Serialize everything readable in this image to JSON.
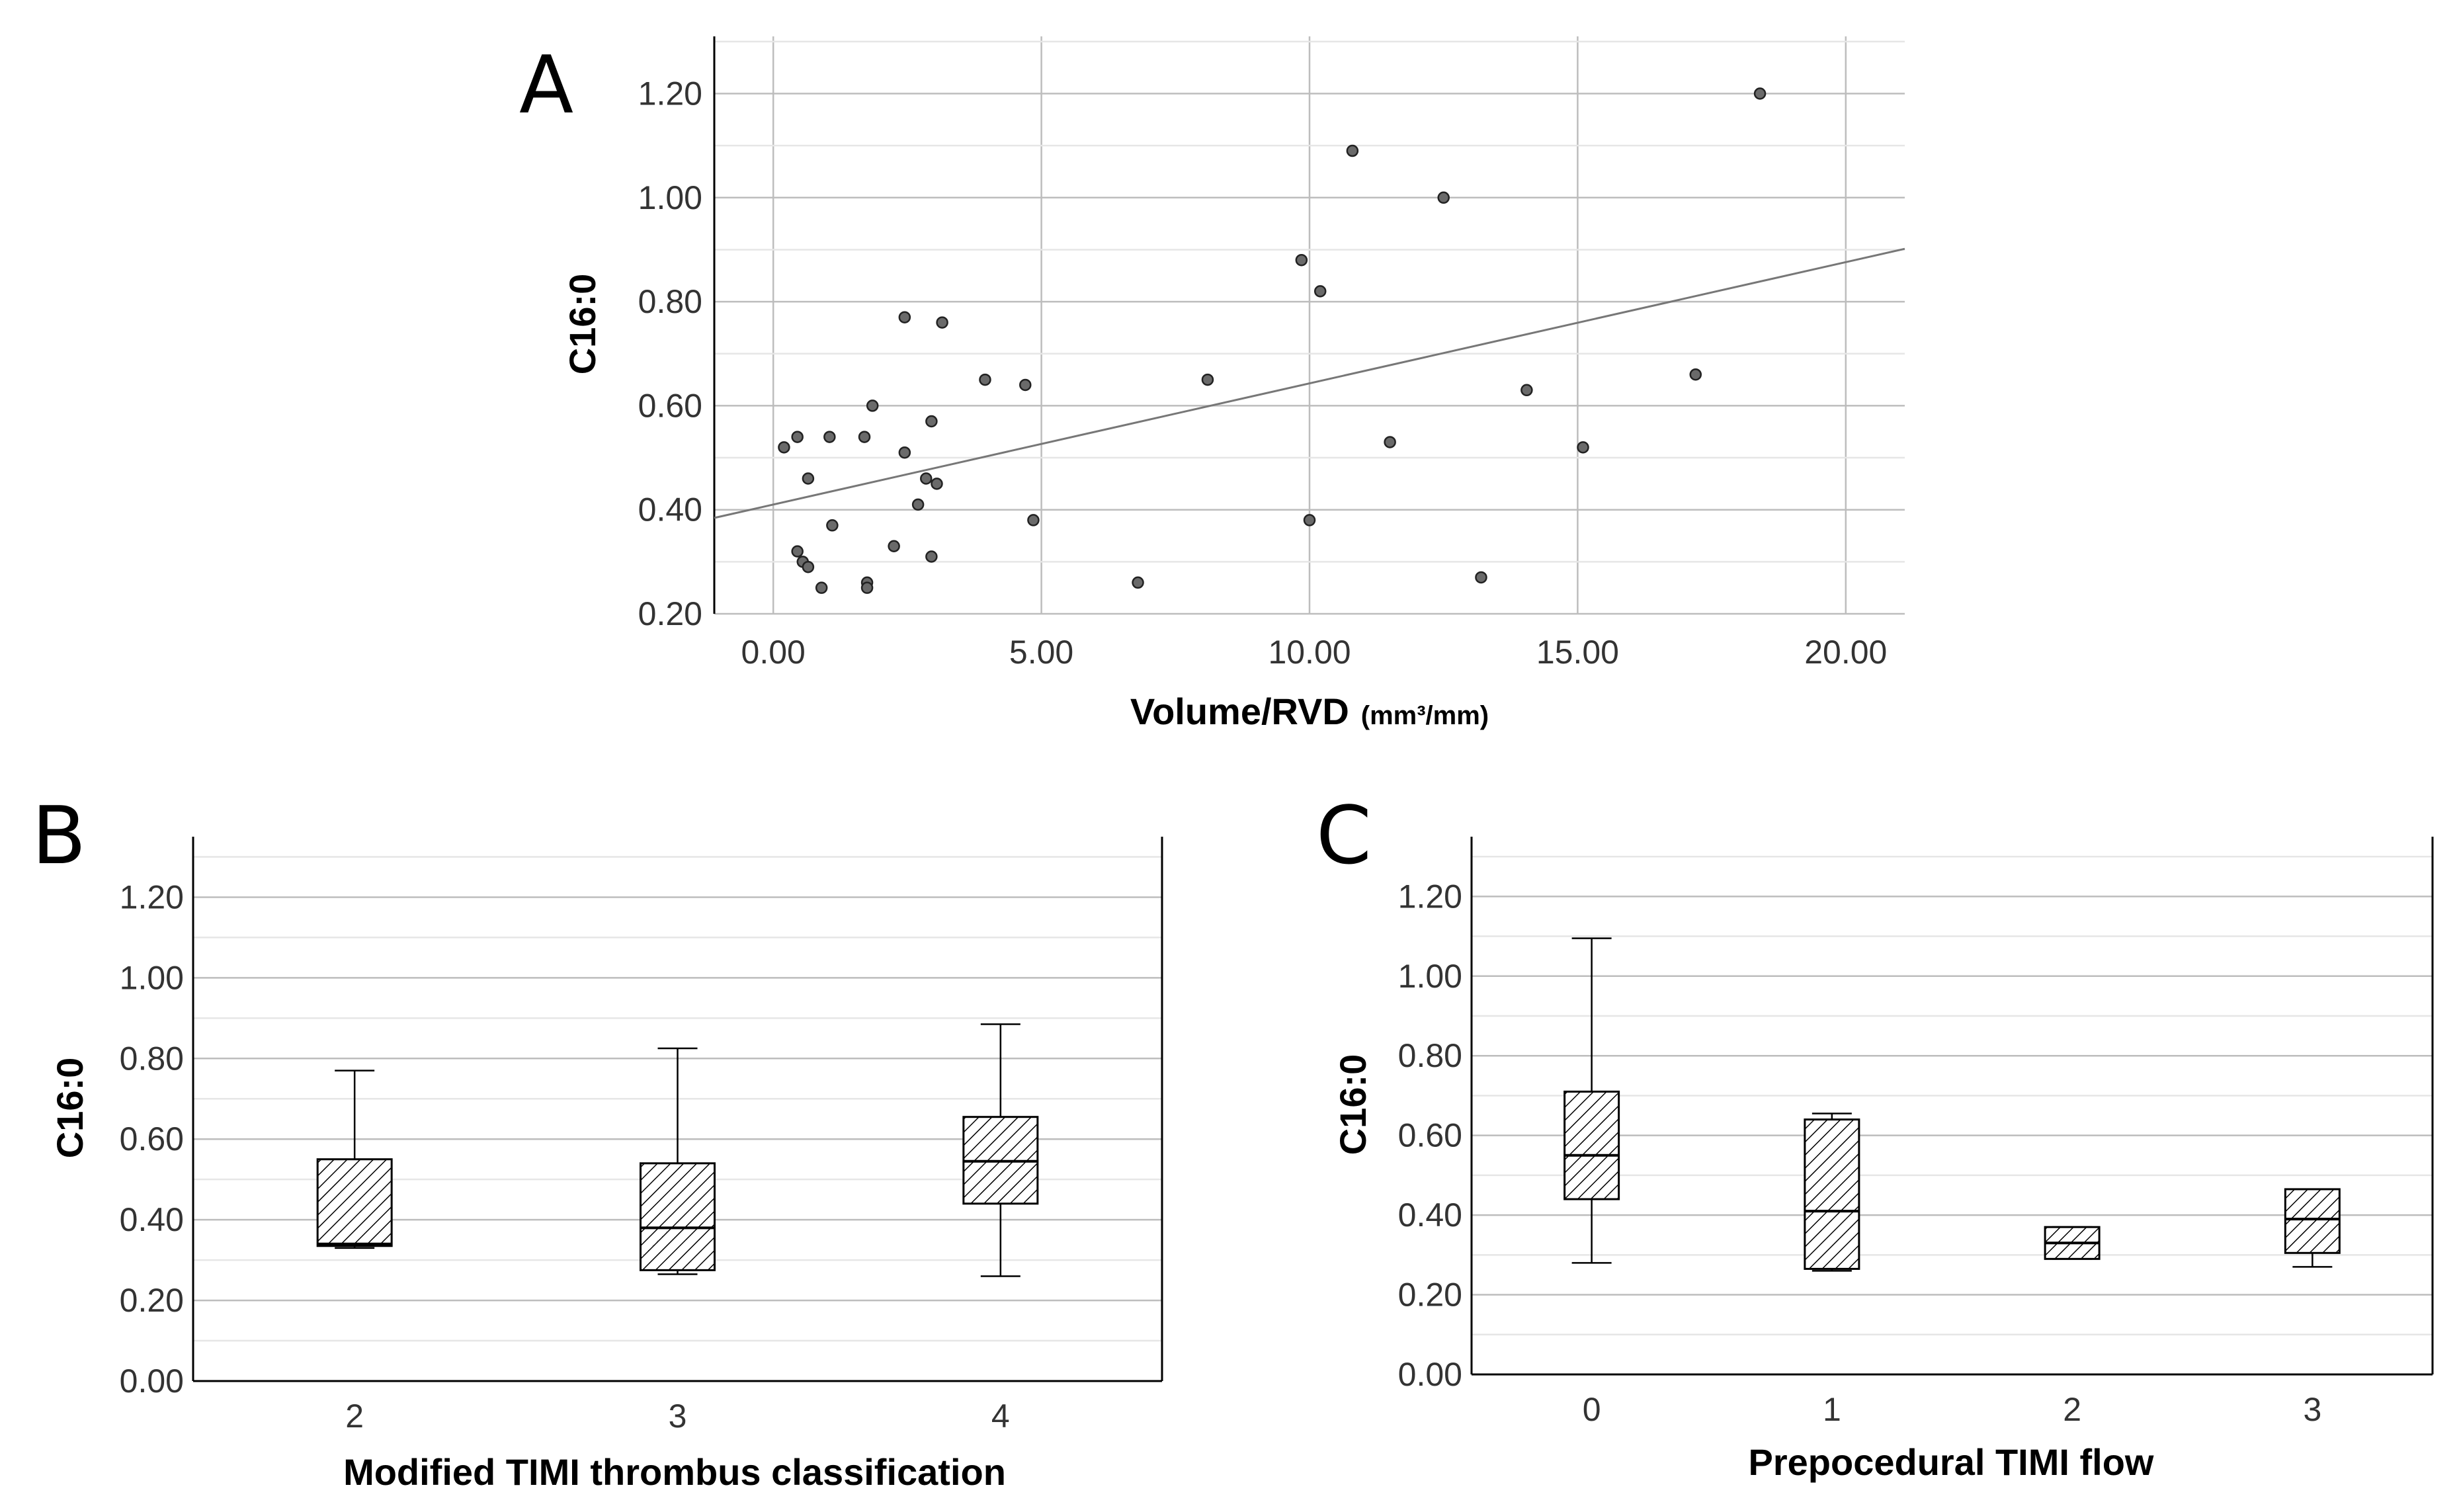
{
  "chart_data": [
    {
      "panel": "A",
      "type": "scatter",
      "title": "",
      "xlabel": "Volume/RVD",
      "xunit": "(mm³/mm)",
      "ylabel": "C16:0",
      "xlim": [
        -1.1,
        21.1
      ],
      "ylim": [
        0.2,
        1.31
      ],
      "xticks": [
        "0.00",
        "5.00",
        "10.00",
        "15.00",
        "20.00"
      ],
      "yticks": [
        "0.20",
        "0.40",
        "0.60",
        "0.80",
        "1.00",
        "1.20"
      ],
      "points": [
        [
          0.2,
          0.52
        ],
        [
          0.45,
          0.54
        ],
        [
          0.45,
          0.32
        ],
        [
          0.55,
          0.3
        ],
        [
          0.65,
          0.29
        ],
        [
          0.65,
          0.46
        ],
        [
          0.9,
          0.25
        ],
        [
          1.05,
          0.54
        ],
        [
          1.1,
          0.37
        ],
        [
          2.25,
          0.33
        ],
        [
          1.7,
          0.54
        ],
        [
          1.75,
          0.26
        ],
        [
          1.75,
          0.25
        ],
        [
          1.85,
          0.6
        ],
        [
          2.45,
          0.51
        ],
        [
          2.45,
          0.77
        ],
        [
          2.7,
          0.41
        ],
        [
          2.85,
          0.46
        ],
        [
          2.95,
          0.57
        ],
        [
          2.95,
          0.31
        ],
        [
          3.05,
          0.45
        ],
        [
          3.15,
          0.76
        ],
        [
          3.95,
          0.65
        ],
        [
          4.7,
          0.64
        ],
        [
          4.85,
          0.38
        ],
        [
          6.8,
          0.26
        ],
        [
          8.1,
          0.65
        ],
        [
          9.85,
          0.88
        ],
        [
          10.0,
          0.38
        ],
        [
          10.2,
          0.82
        ],
        [
          10.8,
          1.09
        ],
        [
          11.5,
          0.53
        ],
        [
          12.5,
          1.0
        ],
        [
          13.2,
          0.27
        ],
        [
          14.05,
          0.63
        ],
        [
          15.1,
          0.52
        ],
        [
          17.2,
          0.66
        ],
        [
          18.4,
          1.2
        ]
      ],
      "fit_line": {
        "intercept": 0.41,
        "slope": 0.0233
      }
    },
    {
      "panel": "B",
      "type": "box",
      "title": "",
      "xlabel": "Modified TIMI thrombus classification",
      "ylabel": "C16:0",
      "ylim": [
        0.0,
        1.35
      ],
      "yticks": [
        "0.00",
        "0.20",
        "0.40",
        "0.60",
        "0.80",
        "1.00",
        "1.20"
      ],
      "categories": [
        "2",
        "3",
        "4"
      ],
      "boxes": [
        {
          "min": 0.33,
          "q1": 0.335,
          "median": 0.34,
          "q3": 0.55,
          "max": 0.77
        },
        {
          "min": 0.265,
          "q1": 0.275,
          "median": 0.38,
          "q3": 0.54,
          "max": 0.825
        },
        {
          "min": 0.26,
          "q1": 0.44,
          "median": 0.545,
          "q3": 0.655,
          "max": 0.885
        }
      ]
    },
    {
      "panel": "C",
      "type": "box",
      "title": "",
      "xlabel": "Prepocedural TIMI flow",
      "ylabel": "C16:0",
      "ylim": [
        0.0,
        1.35
      ],
      "yticks": [
        "0.00",
        "0.20",
        "0.40",
        "0.60",
        "0.80",
        "1.00",
        "1.20"
      ],
      "categories": [
        "0",
        "1",
        "2",
        "3"
      ],
      "boxes": [
        {
          "min": 0.28,
          "q1": 0.44,
          "median": 0.55,
          "q3": 0.71,
          "max": 1.095
        },
        {
          "min": 0.26,
          "q1": 0.265,
          "median": 0.41,
          "q3": 0.64,
          "max": 0.655
        },
        {
          "min": 0.29,
          "q1": 0.29,
          "median": 0.33,
          "q3": 0.37,
          "max": 0.37
        },
        {
          "min": 0.27,
          "q1": 0.305,
          "median": 0.39,
          "q3": 0.465,
          "max": 0.465
        }
      ]
    }
  ],
  "labels": {
    "A": "A",
    "B": "B",
    "C": "C"
  }
}
